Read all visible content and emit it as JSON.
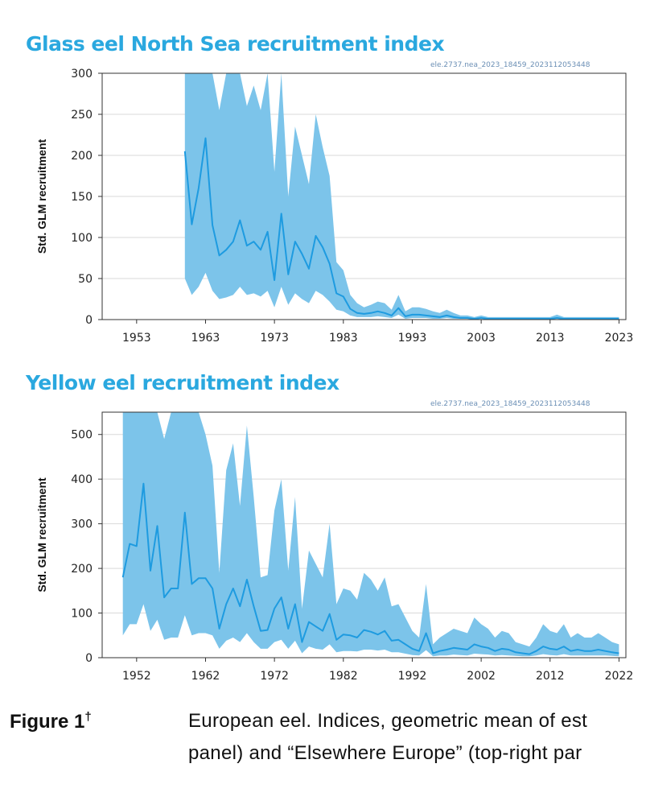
{
  "chart_data": [
    {
      "type": "line",
      "title": "Glass eel North Sea recruitment index",
      "reference": "ele.2737.nea_2023_18459_2023112053448",
      "ylabel": "Std. GLM recruitment",
      "xlabel": "",
      "xlim": [
        1948,
        2024
      ],
      "ylim": [
        0,
        300
      ],
      "yticks": [
        0,
        50,
        100,
        150,
        200,
        250,
        300
      ],
      "xticks": [
        1953,
        1963,
        1973,
        1983,
        1993,
        2003,
        2013,
        2023
      ],
      "series": [
        {
          "name": "index",
          "x": [
            1960,
            1961,
            1962,
            1963,
            1964,
            1965,
            1966,
            1967,
            1968,
            1969,
            1970,
            1971,
            1972,
            1973,
            1974,
            1975,
            1976,
            1977,
            1978,
            1979,
            1980,
            1981,
            1982,
            1983,
            1984,
            1985,
            1986,
            1987,
            1988,
            1989,
            1990,
            1991,
            1992,
            1993,
            1994,
            1995,
            1996,
            1997,
            1998,
            1999,
            2000,
            2001,
            2002,
            2003,
            2004,
            2005,
            2006,
            2007,
            2008,
            2009,
            2010,
            2011,
            2012,
            2013,
            2014,
            2015,
            2016,
            2017,
            2018,
            2019,
            2020,
            2021,
            2022,
            2023
          ],
          "values": [
            205,
            116,
            160,
            221,
            115,
            78,
            85,
            95,
            121,
            90,
            95,
            85,
            107,
            48,
            129,
            55,
            95,
            80,
            62,
            102,
            88,
            68,
            32,
            28,
            13,
            8,
            7,
            8,
            10,
            8,
            5,
            14,
            4,
            6,
            6,
            5,
            4,
            3,
            5,
            3,
            2,
            2,
            1,
            2,
            1,
            1,
            1,
            1,
            1,
            1,
            1,
            1,
            1,
            1,
            2,
            1,
            1,
            1,
            1,
            1,
            1,
            1,
            1,
            1
          ],
          "lower": [
            50,
            30,
            40,
            57,
            35,
            25,
            27,
            30,
            40,
            30,
            32,
            28,
            35,
            15,
            40,
            18,
            32,
            25,
            20,
            35,
            30,
            22,
            12,
            10,
            5,
            3,
            3,
            3,
            4,
            3,
            2,
            6,
            1,
            2,
            2,
            2,
            1,
            1,
            2,
            1,
            1,
            1,
            0,
            1,
            0,
            0,
            0,
            0,
            0,
            0,
            0,
            0,
            0,
            0,
            1,
            0,
            0,
            0,
            0,
            0,
            0,
            0,
            0,
            0
          ],
          "upper": [
            300,
            300,
            300,
            300,
            300,
            255,
            300,
            310,
            300,
            260,
            285,
            255,
            300,
            180,
            305,
            150,
            235,
            200,
            165,
            250,
            210,
            175,
            70,
            60,
            30,
            20,
            15,
            18,
            22,
            20,
            12,
            30,
            10,
            15,
            15,
            13,
            10,
            8,
            12,
            8,
            5,
            5,
            3,
            5,
            3,
            3,
            3,
            3,
            3,
            3,
            3,
            3,
            3,
            3,
            6,
            3,
            3,
            3,
            3,
            3,
            3,
            3,
            3,
            3
          ]
        }
      ]
    },
    {
      "type": "line",
      "title": "Yellow eel recruitment index",
      "reference": "ele.2737.nea_2023_18459_2023112053448",
      "ylabel": "Std. GLM recruitment",
      "xlabel": "",
      "xlim": [
        1947,
        2023
      ],
      "ylim": [
        0,
        550
      ],
      "yticks": [
        0,
        100,
        200,
        300,
        400,
        500
      ],
      "xticks": [
        1952,
        1962,
        1972,
        1982,
        1992,
        2002,
        2012,
        2022
      ],
      "series": [
        {
          "name": "index",
          "x": [
            1950,
            1951,
            1952,
            1953,
            1954,
            1955,
            1956,
            1957,
            1958,
            1959,
            1960,
            1961,
            1962,
            1963,
            1964,
            1965,
            1966,
            1967,
            1968,
            1969,
            1970,
            1971,
            1972,
            1973,
            1974,
            1975,
            1976,
            1977,
            1978,
            1979,
            1980,
            1981,
            1982,
            1983,
            1984,
            1985,
            1986,
            1987,
            1988,
            1989,
            1990,
            1991,
            1992,
            1993,
            1994,
            1995,
            1996,
            1997,
            1998,
            1999,
            2000,
            2001,
            2002,
            2003,
            2004,
            2005,
            2006,
            2007,
            2008,
            2009,
            2010,
            2011,
            2012,
            2013,
            2014,
            2015,
            2016,
            2017,
            2018,
            2019,
            2020,
            2021,
            2022
          ],
          "values": [
            180,
            255,
            250,
            390,
            195,
            295,
            135,
            155,
            155,
            325,
            165,
            178,
            178,
            155,
            65,
            120,
            155,
            115,
            175,
            115,
            60,
            62,
            110,
            135,
            65,
            120,
            35,
            80,
            70,
            60,
            98,
            40,
            52,
            50,
            45,
            62,
            58,
            52,
            60,
            38,
            40,
            30,
            20,
            15,
            55,
            10,
            15,
            18,
            22,
            20,
            18,
            30,
            25,
            22,
            15,
            20,
            18,
            12,
            10,
            8,
            15,
            25,
            20,
            18,
            25,
            15,
            18,
            15,
            15,
            18,
            15,
            12,
            10
          ],
          "lower": [
            50,
            75,
            75,
            120,
            60,
            85,
            40,
            45,
            45,
            95,
            50,
            55,
            55,
            50,
            20,
            38,
            45,
            35,
            55,
            35,
            20,
            20,
            35,
            40,
            20,
            38,
            10,
            25,
            20,
            18,
            30,
            12,
            15,
            15,
            14,
            18,
            18,
            16,
            18,
            12,
            12,
            9,
            6,
            5,
            17,
            3,
            5,
            5,
            7,
            6,
            5,
            9,
            8,
            7,
            5,
            6,
            5,
            4,
            3,
            3,
            5,
            8,
            6,
            5,
            8,
            5,
            5,
            5,
            5,
            5,
            5,
            4,
            3
          ],
          "upper": [
            550,
            550,
            550,
            550,
            550,
            550,
            490,
            550,
            550,
            550,
            550,
            550,
            500,
            430,
            190,
            420,
            480,
            340,
            520,
            360,
            180,
            185,
            330,
            400,
            195,
            360,
            110,
            240,
            210,
            180,
            300,
            120,
            155,
            150,
            130,
            190,
            175,
            150,
            180,
            115,
            120,
            90,
            60,
            45,
            165,
            30,
            45,
            55,
            65,
            60,
            55,
            90,
            75,
            65,
            45,
            60,
            55,
            35,
            30,
            25,
            45,
            75,
            60,
            55,
            75,
            45,
            55,
            45,
            45,
            55,
            45,
            35,
            30
          ]
        }
      ]
    }
  ],
  "caption": {
    "label": "Figure 1",
    "dagger": "†",
    "line1": "European eel. Indices, geometric mean of est",
    "line2": "panel) and “Elsewhere Europe” (top-right par"
  },
  "colors": {
    "title": "#2aa8df",
    "line": "#1e9be0",
    "band": "#7cc4ea",
    "grid": "#d9d9d9"
  }
}
